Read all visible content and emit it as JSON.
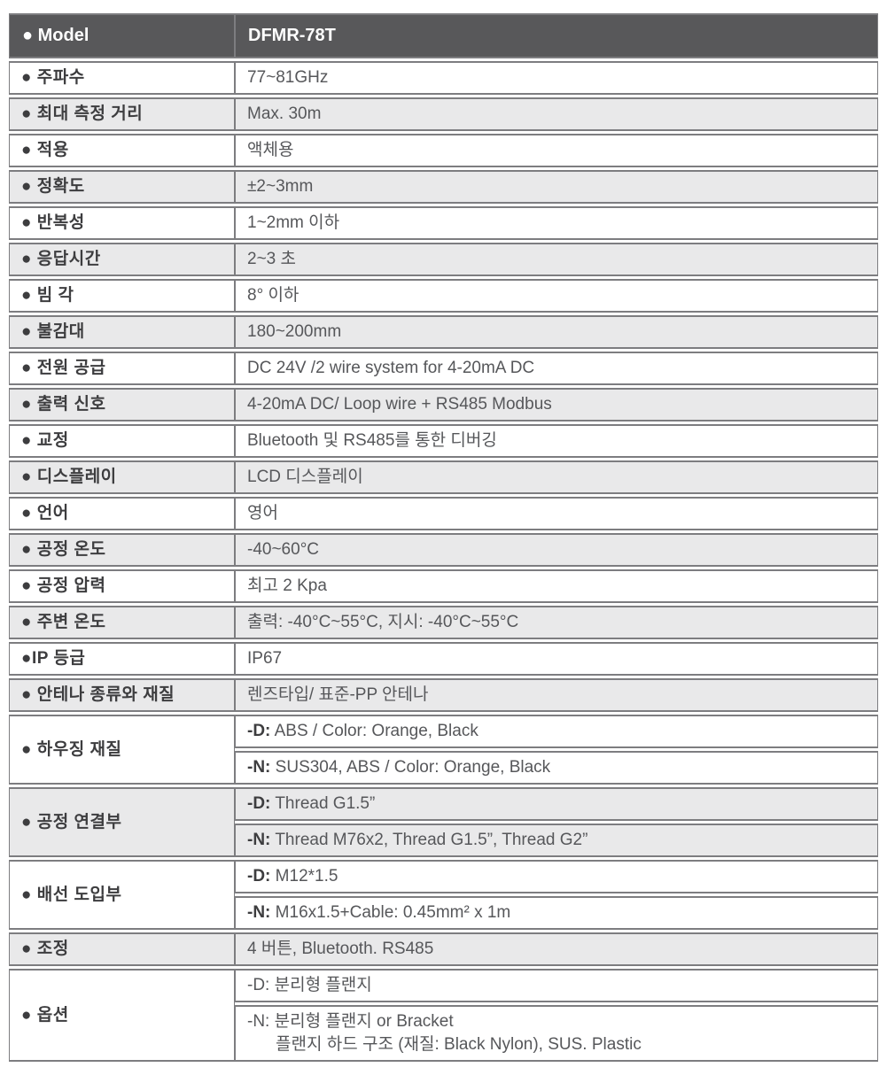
{
  "title": "DFMR-78T specification table",
  "colors": {
    "header_bg": "#58585a",
    "header_text": "#ffffff",
    "row_alt_gray": "#e9e9ea",
    "row_white": "#ffffff",
    "border": "#7d7d80",
    "label_text": "#3d3d3f",
    "value_text": "#56575a"
  },
  "header": {
    "label": "● Model",
    "value": "DFMR-78T"
  },
  "rows": [
    {
      "label": "● 주파수",
      "values": [
        {
          "text": "77~81GHz"
        }
      ]
    },
    {
      "label": "● 최대 측정 거리",
      "values": [
        {
          "text": "Max. 30m"
        }
      ]
    },
    {
      "label": "● 적용",
      "values": [
        {
          "text": "액체용"
        }
      ]
    },
    {
      "label": "● 정확도",
      "values": [
        {
          "text": "±2~3mm"
        }
      ]
    },
    {
      "label": "● 반복성",
      "values": [
        {
          "text": "1~2mm 이하"
        }
      ]
    },
    {
      "label": "● 응답시간",
      "values": [
        {
          "text": "2~3 초"
        }
      ]
    },
    {
      "label": "● 빔 각",
      "values": [
        {
          "text": "8° 이하"
        }
      ]
    },
    {
      "label": "● 불감대",
      "values": [
        {
          "text": "180~200mm"
        }
      ]
    },
    {
      "label": "● 전원 공급",
      "values": [
        {
          "text": "DC 24V /2 wire system for 4-20mA DC"
        }
      ]
    },
    {
      "label": "● 출력 신호",
      "values": [
        {
          "text": "4-20mA DC/ Loop wire + RS485 Modbus"
        }
      ]
    },
    {
      "label": "● 교정",
      "values": [
        {
          "text": "Bluetooth 및 RS485를 통한 디버깅"
        }
      ]
    },
    {
      "label": "● 디스플레이",
      "values": [
        {
          "text": "LCD 디스플레이"
        }
      ]
    },
    {
      "label": "● 언어",
      "values": [
        {
          "text": "영어"
        }
      ]
    },
    {
      "label": "● 공정 온도",
      "values": [
        {
          "text": "-40~60°C"
        }
      ]
    },
    {
      "label": "● 공정 압력",
      "values": [
        {
          "text": "최고 2 Kpa"
        }
      ]
    },
    {
      "label": "● 주변 온도",
      "values": [
        {
          "text": "출력: -40°C~55°C,  지시: -40°C~55°C"
        }
      ]
    },
    {
      "label": "●IP 등급",
      "values": [
        {
          "text": "IP67"
        }
      ]
    },
    {
      "label": "● 안테나 종류와 재질",
      "values": [
        {
          "text": "렌즈타입/ 표준-PP 안테나"
        }
      ]
    },
    {
      "label": "● 하우징 재질",
      "values": [
        {
          "prefix": "-D:",
          "bold_prefix": true,
          "text": " ABS / Color: Orange, Black"
        },
        {
          "prefix": "-N:",
          "bold_prefix": true,
          "text": " SUS304, ABS / Color: Orange, Black"
        }
      ]
    },
    {
      "label": "● 공정 연결부",
      "values": [
        {
          "prefix": "-D:",
          "bold_prefix": true,
          "text": " Thread G1.5”"
        },
        {
          "prefix": "-N:",
          "bold_prefix": true,
          "text": " Thread M76x2, Thread G1.5”, Thread G2”"
        }
      ]
    },
    {
      "label": "● 배선 도입부",
      "values": [
        {
          "prefix": "-D:",
          "bold_prefix": true,
          "text": " M12*1.5"
        },
        {
          "prefix": "-N:",
          "bold_prefix": true,
          "text": " M16x1.5+Cable: 0.45mm² x 1m"
        }
      ]
    },
    {
      "label": "● 조정",
      "values": [
        {
          "text": "4 버튼, Bluetooth. RS485"
        }
      ]
    },
    {
      "label": "● 옵션",
      "values": [
        {
          "prefix": "-D:",
          "bold_prefix": false,
          "text": " 분리형 플랜지"
        },
        {
          "prefix": "-N:",
          "bold_prefix": false,
          "text": " 분리형 플랜지  or Bracket",
          "line2": "플랜지 하드 구조  (재질: Black Nylon), SUS. Plastic"
        }
      ]
    }
  ]
}
